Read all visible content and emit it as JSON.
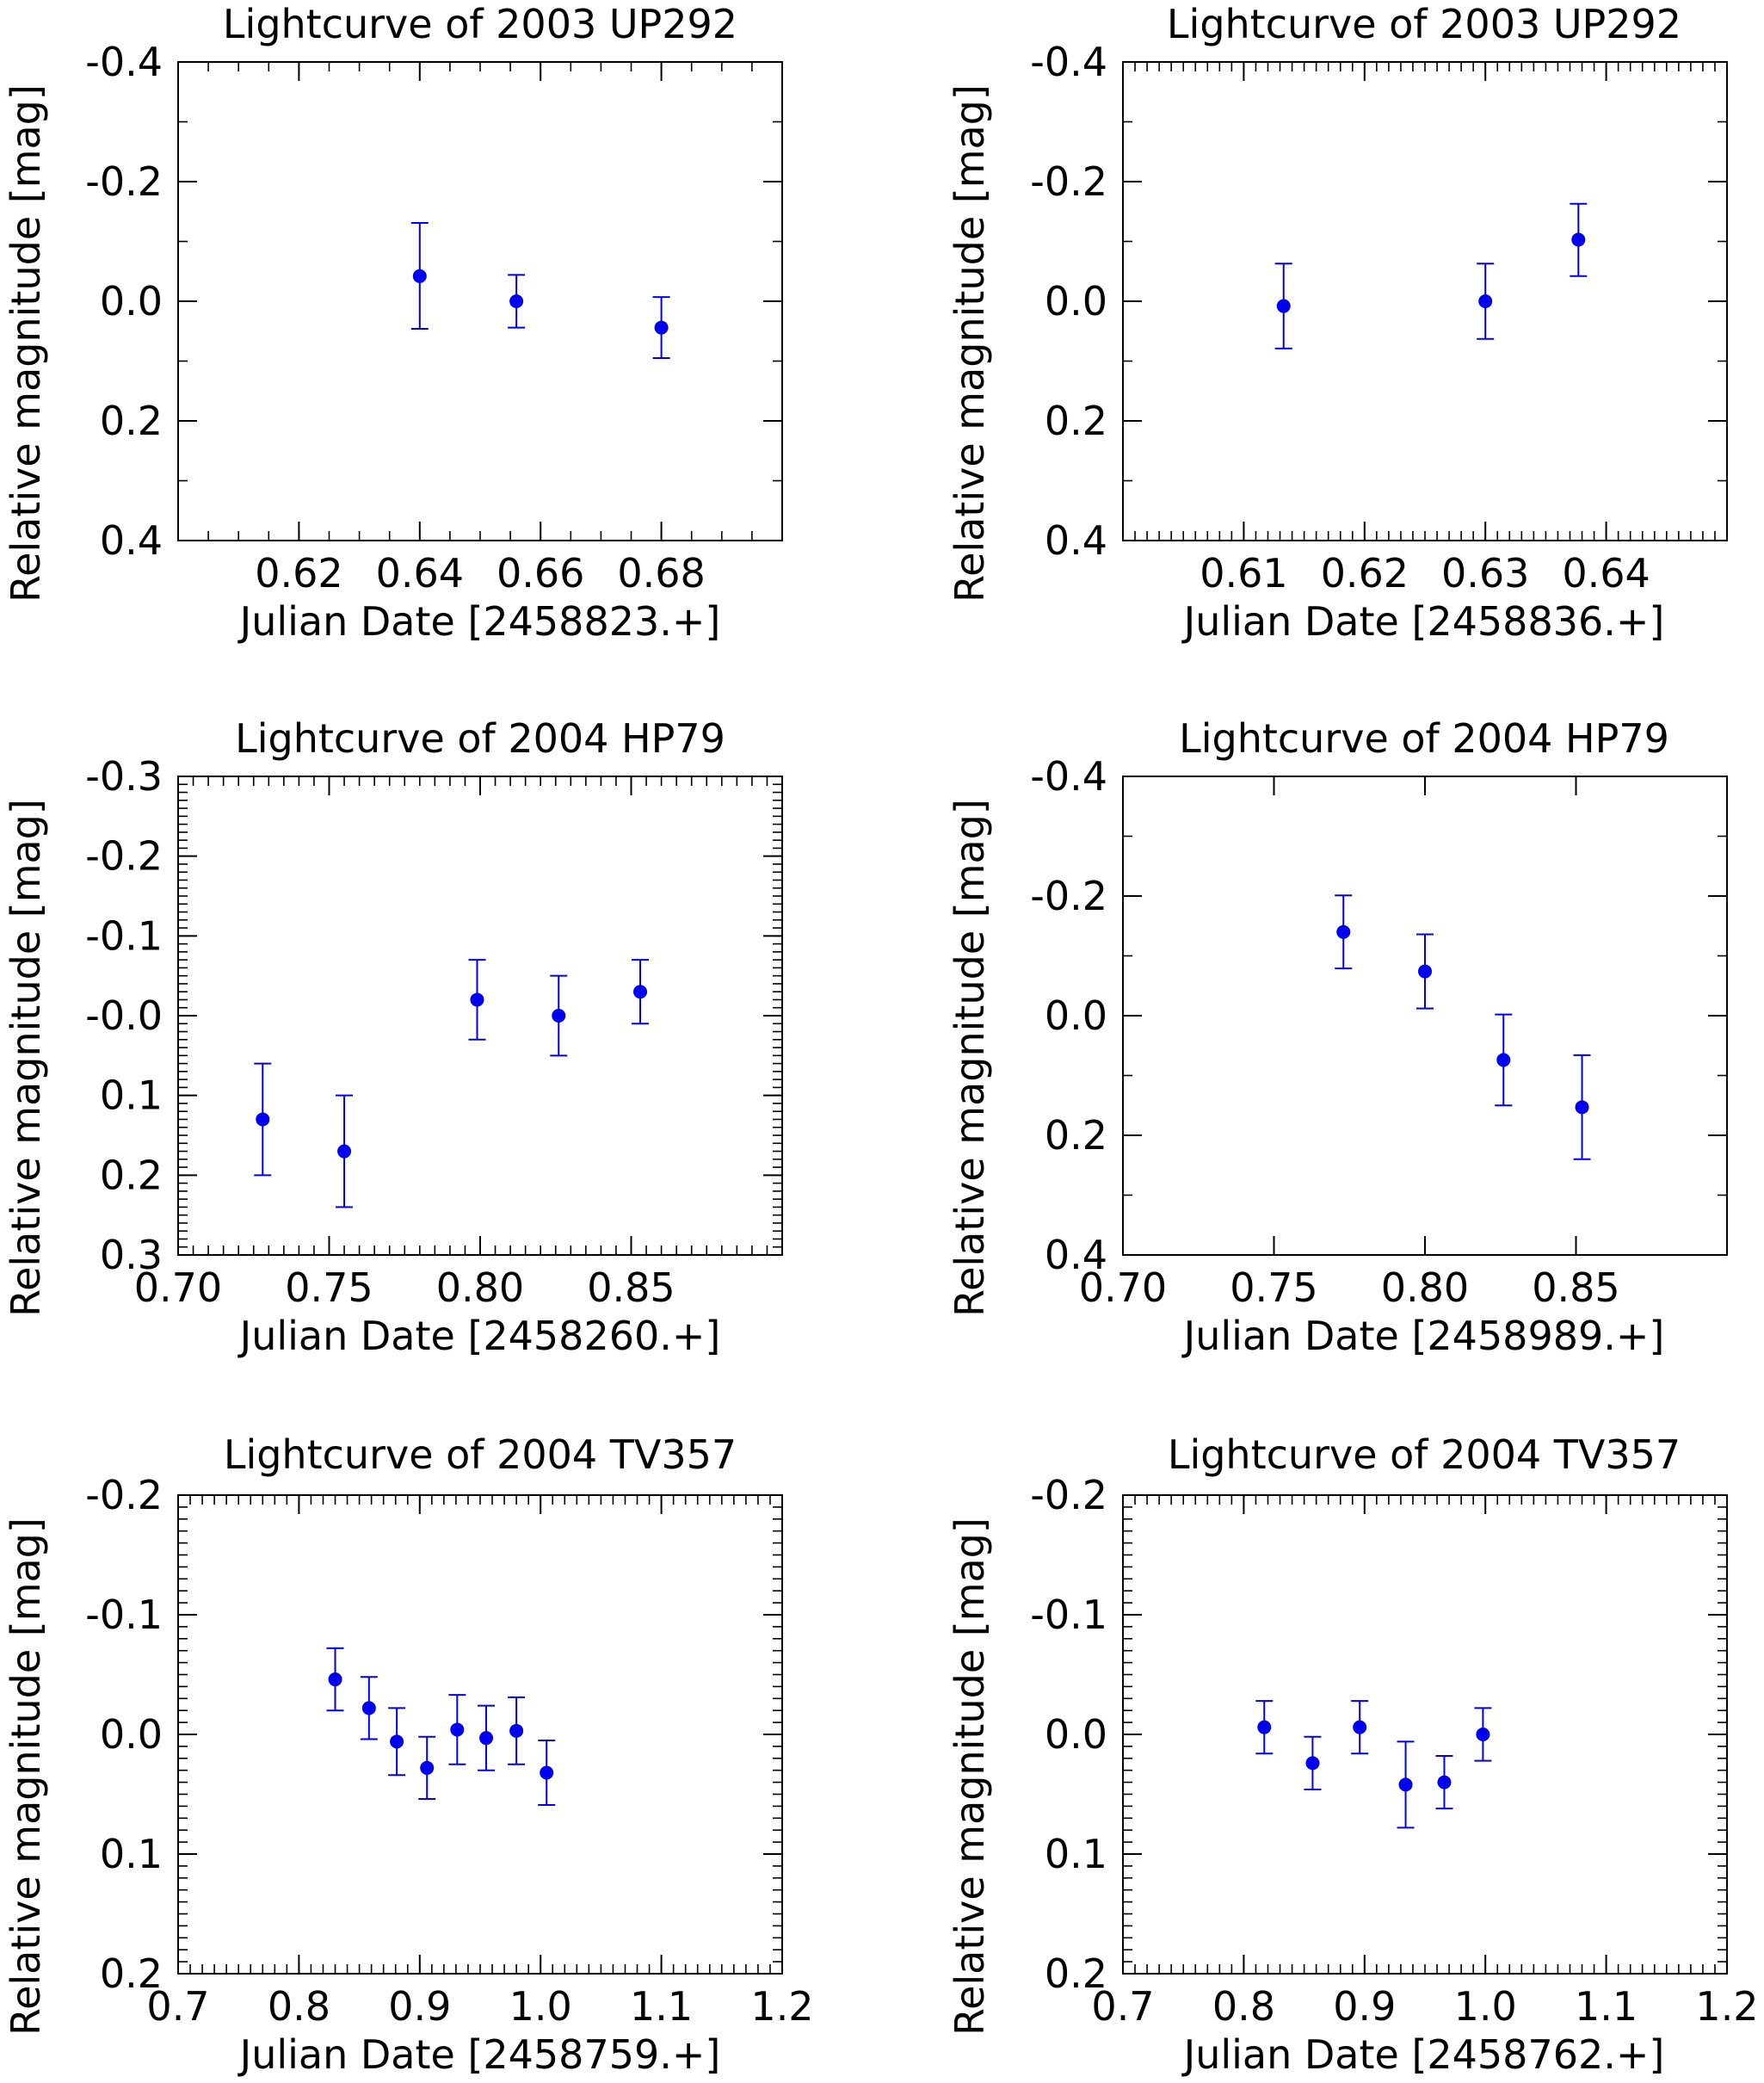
{
  "chart_data": [
    {
      "type": "scatter",
      "title": "Lightcurve of 2003 UP292",
      "xlabel": "Julian Date [2458823.+]",
      "ylabel": "Relative magnitude [mag]",
      "xlim": [
        0.6,
        0.7
      ],
      "ylim": [
        0.4,
        -0.4
      ],
      "xticks": [
        0.62,
        0.64,
        0.66,
        0.68
      ],
      "xtick_labels": [
        "0.62",
        "0.64",
        "0.66",
        "0.68"
      ],
      "xminor": 0.005,
      "yticks": [
        -0.4,
        -0.2,
        0.0,
        0.2,
        0.4
      ],
      "ytick_labels": [
        "-0.4",
        "-0.2",
        "0.0",
        "0.2",
        "0.4"
      ],
      "yminor": 0.1,
      "y_inverted": true,
      "marker_color": "#0000ee",
      "points": [
        {
          "x": 0.64,
          "y": -0.042,
          "err_lo": -0.131,
          "err_hi": 0.046
        },
        {
          "x": 0.656,
          "y": 0.0,
          "err_lo": -0.044,
          "err_hi": 0.044
        },
        {
          "x": 0.68,
          "y": 0.044,
          "err_lo": -0.007,
          "err_hi": 0.095
        }
      ]
    },
    {
      "type": "scatter",
      "title": "Lightcurve of 2003 UP292",
      "xlabel": "Julian Date [2458836.+]",
      "ylabel": "Relative magnitude [mag]",
      "xlim": [
        0.6,
        0.65
      ],
      "ylim": [
        0.4,
        -0.4
      ],
      "xticks": [
        0.61,
        0.62,
        0.63,
        0.64
      ],
      "xtick_labels": [
        "0.61",
        "0.62",
        "0.63",
        "0.64"
      ],
      "xminor": 0.001,
      "yticks": [
        -0.4,
        -0.2,
        0.0,
        0.2,
        0.4
      ],
      "ytick_labels": [
        "-0.4",
        "-0.2",
        "0.0",
        "0.2",
        "0.4"
      ],
      "yminor": 0.1,
      "y_inverted": true,
      "marker_color": "#0000ee",
      "points": [
        {
          "x": 0.6133,
          "y": 0.008,
          "err_lo": -0.063,
          "err_hi": 0.079
        },
        {
          "x": 0.63,
          "y": 0.0,
          "err_lo": -0.063,
          "err_hi": 0.063
        },
        {
          "x": 0.6377,
          "y": -0.103,
          "err_lo": -0.163,
          "err_hi": -0.042
        }
      ]
    },
    {
      "type": "scatter",
      "title": "Lightcurve of 2004 HP79",
      "xlabel": "Julian Date [2458260.+]",
      "ylabel": "Relative magnitude [mag]",
      "xlim": [
        0.7,
        0.9
      ],
      "ylim": [
        0.3,
        -0.3
      ],
      "xticks": [
        0.7,
        0.75,
        0.8,
        0.85
      ],
      "xtick_labels": [
        "0.70",
        "0.75",
        "0.80",
        "0.85"
      ],
      "xminor": 0.005,
      "yticks": [
        -0.3,
        -0.2,
        -0.1,
        0.0,
        0.1,
        0.2,
        0.3
      ],
      "ytick_labels": [
        "-0.3",
        "-0.2",
        "-0.1",
        "-0.0",
        "0.1",
        "0.2",
        "0.3"
      ],
      "yminor": 0.01,
      "y_inverted": true,
      "marker_color": "#0000ee",
      "points": [
        {
          "x": 0.728,
          "y": 0.13,
          "err_lo": 0.06,
          "err_hi": 0.2
        },
        {
          "x": 0.755,
          "y": 0.17,
          "err_lo": 0.1,
          "err_hi": 0.24
        },
        {
          "x": 0.799,
          "y": -0.02,
          "err_lo": -0.07,
          "err_hi": 0.03
        },
        {
          "x": 0.826,
          "y": 0.0,
          "err_lo": -0.05,
          "err_hi": 0.05
        },
        {
          "x": 0.853,
          "y": -0.03,
          "err_lo": -0.07,
          "err_hi": 0.01
        }
      ]
    },
    {
      "type": "scatter",
      "title": "Lightcurve of 2004 HP79",
      "xlabel": "Julian Date [2458989.+]",
      "ylabel": "Relative magnitude [mag]",
      "xlim": [
        0.7,
        0.9
      ],
      "ylim": [
        0.4,
        -0.4
      ],
      "xticks": [
        0.7,
        0.75,
        0.8,
        0.85
      ],
      "xtick_labels": [
        "0.70",
        "0.75",
        "0.80",
        "0.85"
      ],
      "xminor": 0.05,
      "yticks": [
        -0.4,
        -0.2,
        0.0,
        0.2,
        0.4
      ],
      "ytick_labels": [
        "-0.4",
        "-0.2",
        "0.0",
        "0.2",
        "0.4"
      ],
      "yminor": 0.1,
      "y_inverted": true,
      "marker_color": "#0000ee",
      "points": [
        {
          "x": 0.773,
          "y": -0.14,
          "err_lo": -0.201,
          "err_hi": -0.079
        },
        {
          "x": 0.8,
          "y": -0.074,
          "err_lo": -0.136,
          "err_hi": -0.012
        },
        {
          "x": 0.826,
          "y": 0.074,
          "err_lo": -0.002,
          "err_hi": 0.15
        },
        {
          "x": 0.852,
          "y": 0.153,
          "err_lo": 0.066,
          "err_hi": 0.24
        }
      ]
    },
    {
      "type": "scatter",
      "title": "Lightcurve of 2004 TV357",
      "xlabel": "Julian Date [2458759.+]",
      "ylabel": "Relative magnitude [mag]",
      "xlim": [
        0.7,
        1.2
      ],
      "ylim": [
        0.2,
        -0.2
      ],
      "xticks": [
        0.7,
        0.8,
        0.9,
        1.0,
        1.1,
        1.2
      ],
      "xtick_labels": [
        "0.7",
        "0.8",
        "0.9",
        "1.0",
        "1.1",
        "1.2"
      ],
      "xminor": 0.01,
      "yticks": [
        -0.2,
        -0.1,
        0.0,
        0.1,
        0.2
      ],
      "ytick_labels": [
        "-0.2",
        "-0.1",
        "0.0",
        "0.1",
        "0.2"
      ],
      "yminor": 0.01,
      "y_inverted": true,
      "marker_color": "#0000ee",
      "points": [
        {
          "x": 0.83,
          "y": -0.046,
          "err_lo": -0.072,
          "err_hi": -0.02
        },
        {
          "x": 0.858,
          "y": -0.022,
          "err_lo": -0.048,
          "err_hi": 0.004
        },
        {
          "x": 0.881,
          "y": 0.006,
          "err_lo": -0.022,
          "err_hi": 0.034
        },
        {
          "x": 0.906,
          "y": 0.028,
          "err_lo": 0.002,
          "err_hi": 0.054
        },
        {
          "x": 0.931,
          "y": -0.004,
          "err_lo": -0.033,
          "err_hi": 0.025
        },
        {
          "x": 0.955,
          "y": 0.003,
          "err_lo": -0.024,
          "err_hi": 0.03
        },
        {
          "x": 0.98,
          "y": -0.003,
          "err_lo": -0.031,
          "err_hi": 0.025
        },
        {
          "x": 1.005,
          "y": 0.032,
          "err_lo": 0.005,
          "err_hi": 0.059
        }
      ]
    },
    {
      "type": "scatter",
      "title": "Lightcurve of 2004 TV357",
      "xlabel": "Julian Date [2458762.+]",
      "ylabel": "Relative magnitude [mag]",
      "xlim": [
        0.7,
        1.2
      ],
      "ylim": [
        0.2,
        -0.2
      ],
      "xticks": [
        0.7,
        0.8,
        0.9,
        1.0,
        1.1,
        1.2
      ],
      "xtick_labels": [
        "0.7",
        "0.8",
        "0.9",
        "1.0",
        "1.1",
        "1.2"
      ],
      "xminor": 0.01,
      "yticks": [
        -0.2,
        -0.1,
        0.0,
        0.1,
        0.2
      ],
      "ytick_labels": [
        "-0.2",
        "-0.1",
        "0.0",
        "0.1",
        "0.2"
      ],
      "yminor": 0.01,
      "y_inverted": true,
      "marker_color": "#0000ee",
      "points": [
        {
          "x": 0.817,
          "y": -0.006,
          "err_lo": -0.028,
          "err_hi": 0.016
        },
        {
          "x": 0.857,
          "y": 0.024,
          "err_lo": 0.002,
          "err_hi": 0.046
        },
        {
          "x": 0.896,
          "y": -0.006,
          "err_lo": -0.028,
          "err_hi": 0.016
        },
        {
          "x": 0.934,
          "y": 0.042,
          "err_lo": 0.006,
          "err_hi": 0.078
        },
        {
          "x": 0.966,
          "y": 0.04,
          "err_lo": 0.018,
          "err_hi": 0.062
        },
        {
          "x": 0.998,
          "y": 0.0,
          "err_lo": -0.022,
          "err_hi": 0.022
        }
      ]
    }
  ]
}
